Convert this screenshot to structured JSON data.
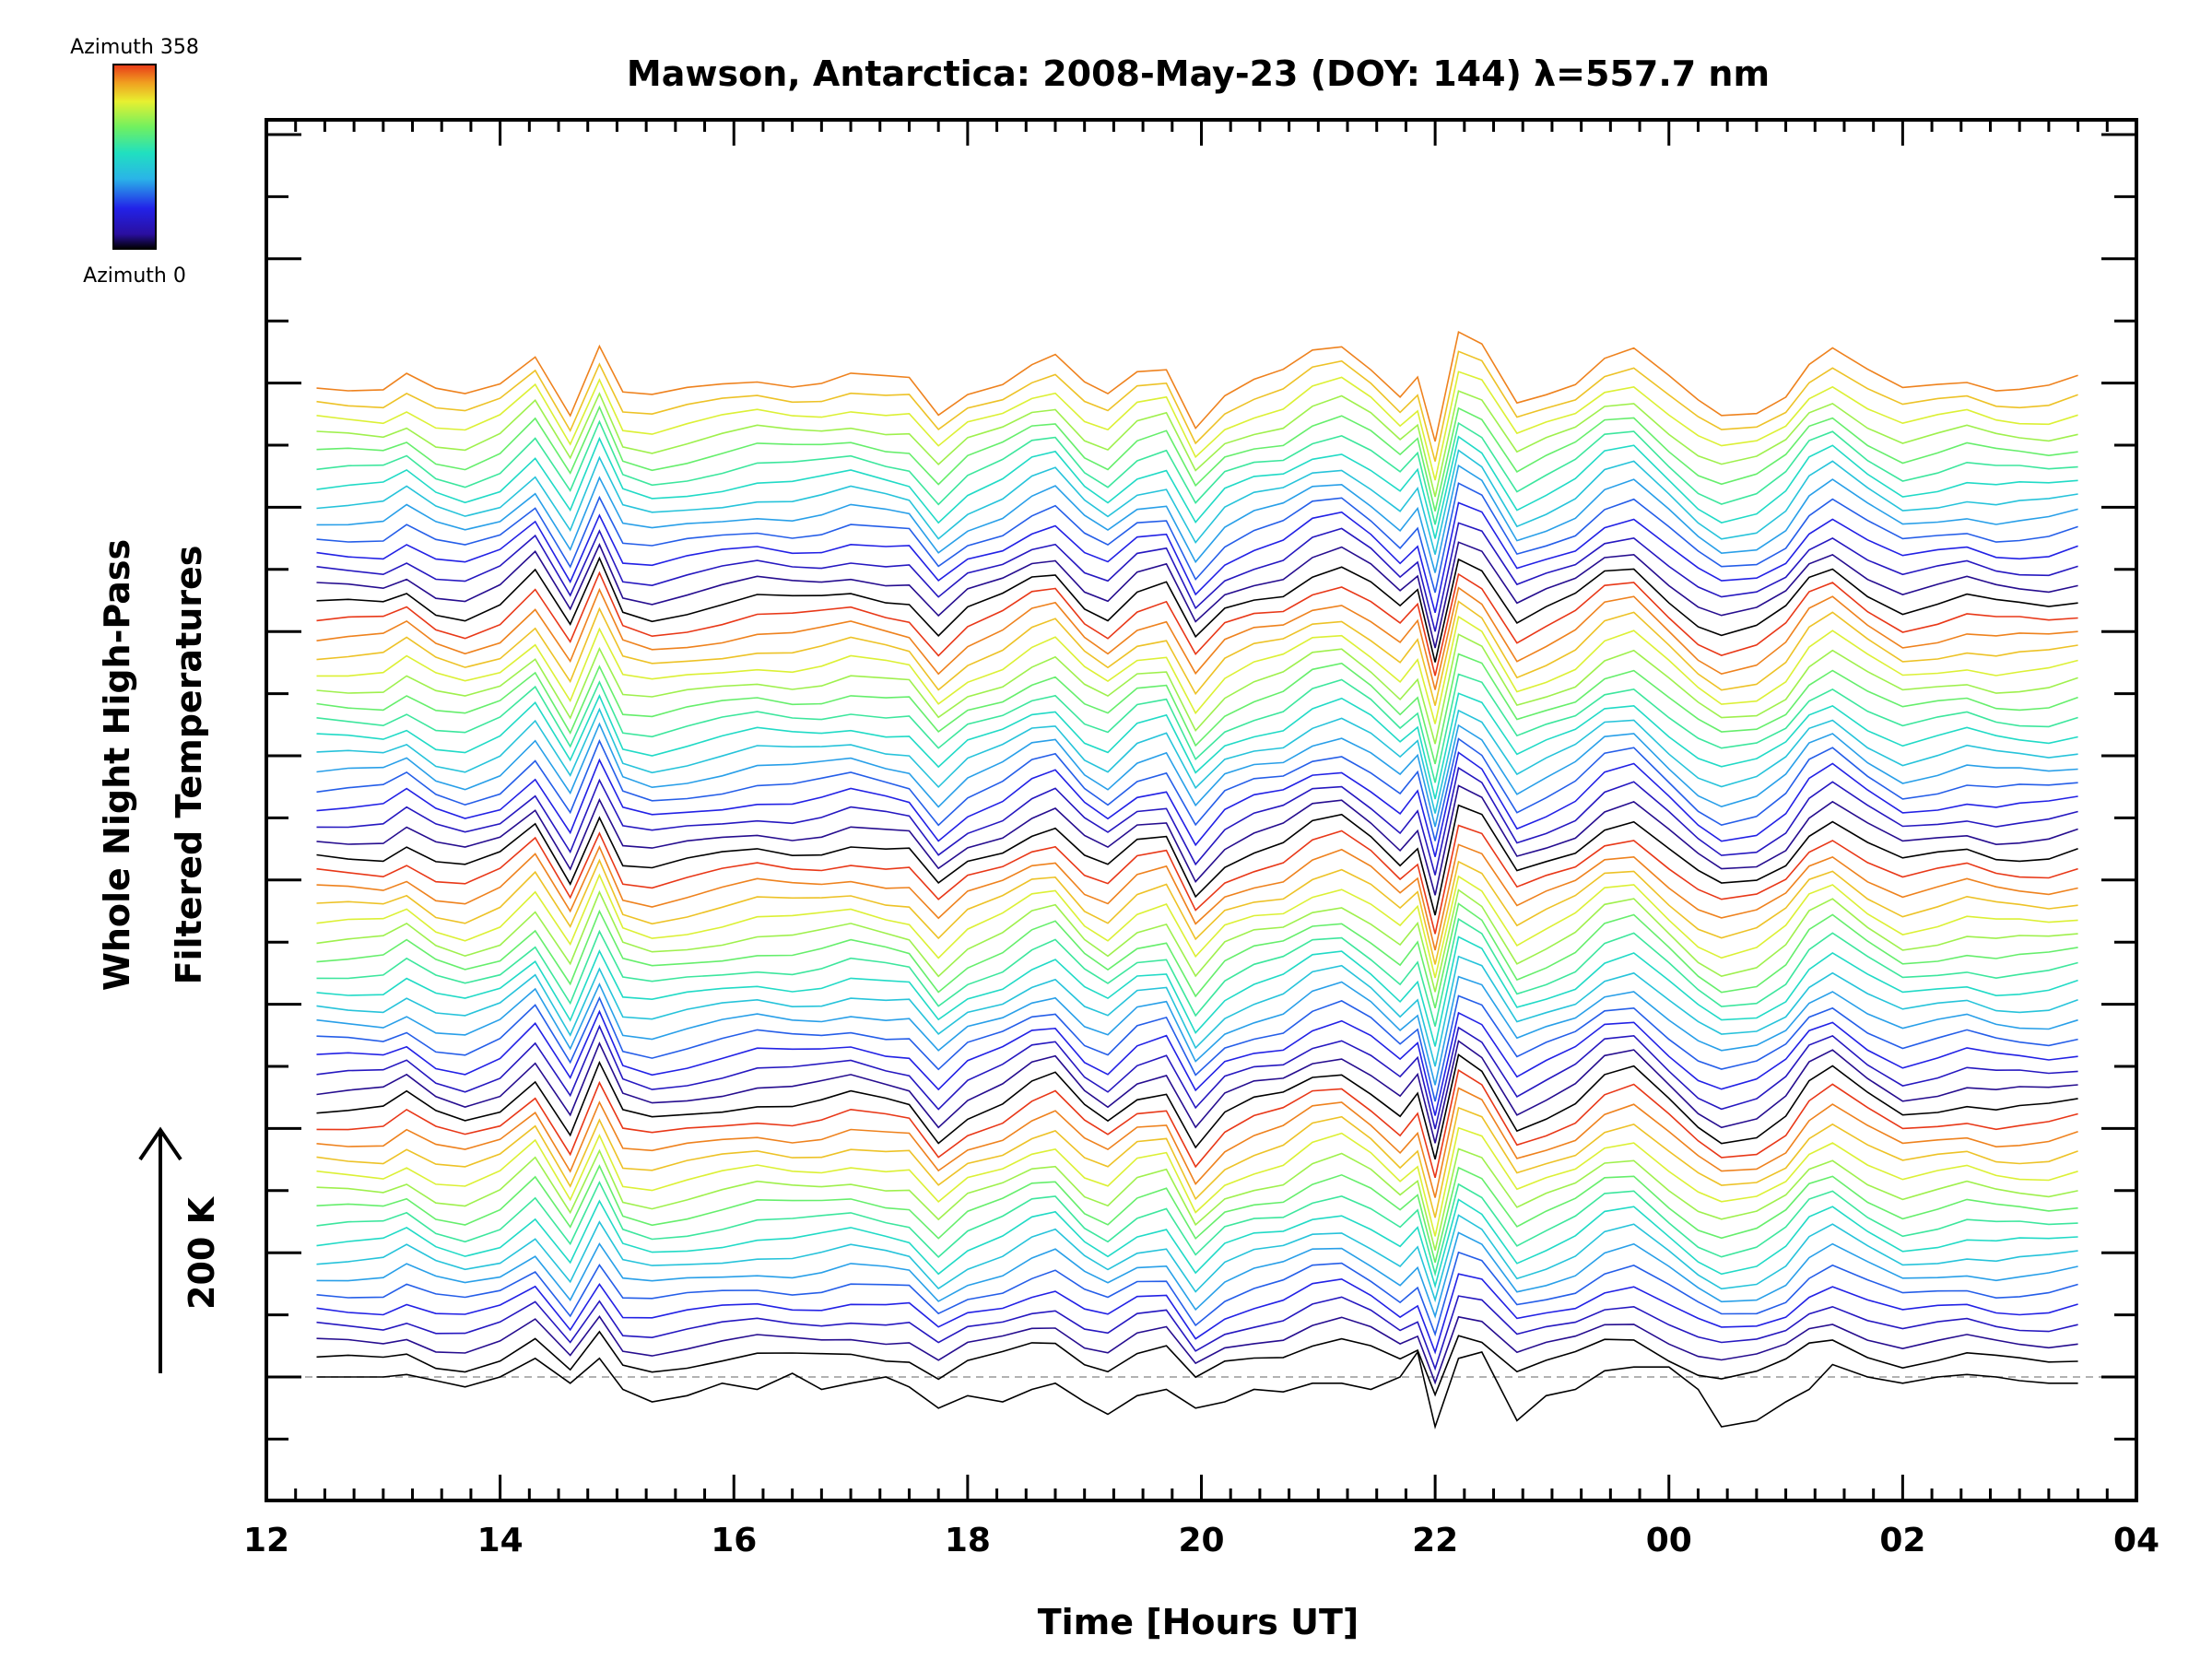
{
  "chart_data": {
    "type": "line",
    "title": "Mawson, Antarctica: 2008-May-23 (DOY: 144) λ=557.7 nm",
    "xlabel": "Time [Hours UT]",
    "ylabel_line1": "Whole Night High-Pass",
    "ylabel_line2": "Filtered Temperatures",
    "scale_label": "200 K",
    "colorbar": {
      "top_label": "Azimuth 358",
      "bottom_label": "Azimuth 0"
    },
    "x_ticks": [
      "12",
      "14",
      "16",
      "18",
      "20",
      "22",
      "00",
      "02",
      "04"
    ],
    "x_range_hours": [
      12,
      28
    ],
    "series_count": 60,
    "series_spacing_K": 13.5,
    "x": [
      12.43,
      12.7,
      13.0,
      13.2,
      13.45,
      13.7,
      14.0,
      14.3,
      14.6,
      14.85,
      15.05,
      15.3,
      15.6,
      15.9,
      16.2,
      16.5,
      16.75,
      17.0,
      17.3,
      17.5,
      17.75,
      18.0,
      18.3,
      18.55,
      18.75,
      19.0,
      19.2,
      19.45,
      19.7,
      19.95,
      20.2,
      20.45,
      20.7,
      20.95,
      21.2,
      21.45,
      21.7,
      21.85,
      22.0,
      22.2,
      22.4,
      22.7,
      22.95,
      23.2,
      23.45,
      23.7,
      24.0,
      24.25,
      24.45,
      24.75,
      25.0,
      25.2,
      25.4,
      25.7,
      26.0,
      26.3,
      26.55,
      26.8,
      27.0,
      27.25,
      27.5
    ],
    "base_profile_K": [
      0,
      0,
      0,
      10,
      -5,
      -10,
      0,
      25,
      -20,
      35,
      -5,
      -10,
      -5,
      0,
      5,
      3,
      5,
      10,
      5,
      3,
      -25,
      -5,
      5,
      20,
      25,
      0,
      -10,
      10,
      15,
      -30,
      -5,
      5,
      10,
      25,
      30,
      15,
      -5,
      10,
      -45,
      40,
      30,
      -15,
      -5,
      5,
      25,
      30,
      5,
      -15,
      -25,
      -20,
      -5,
      20,
      30,
      10,
      -5,
      0,
      5,
      0,
      0,
      0,
      5
    ],
    "bottom_series_K": [
      0,
      0,
      0,
      2,
      -3,
      -8,
      0,
      15,
      -5,
      15,
      -10,
      -20,
      -15,
      -5,
      -10,
      3,
      -10,
      -5,
      0,
      -8,
      -25,
      -15,
      -20,
      -10,
      -5,
      -20,
      -30,
      -15,
      -10,
      -25,
      -20,
      -10,
      -12,
      -5,
      -5,
      -10,
      0,
      20,
      -40,
      15,
      20,
      -35,
      -15,
      -10,
      5,
      8,
      8,
      -10,
      -40,
      -35,
      -20,
      -10,
      10,
      0,
      -5,
      0,
      2,
      0,
      -3,
      -5,
      -5
    ]
  }
}
